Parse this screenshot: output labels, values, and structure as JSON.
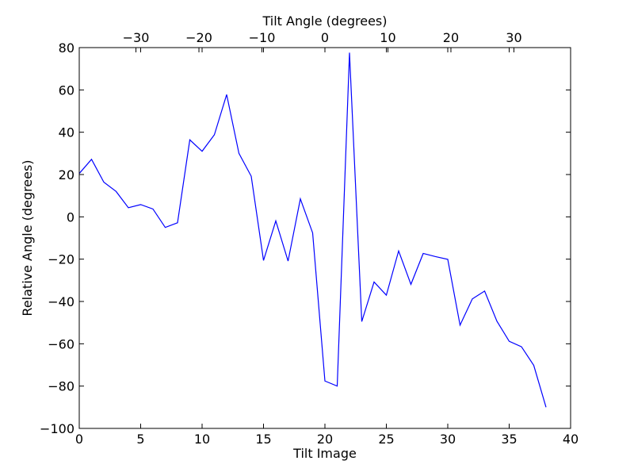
{
  "chart_data": {
    "type": "line",
    "title": "",
    "xlabel": "Tilt Image",
    "ylabel": "Relative Angle (degrees)",
    "x2label": "Tilt Angle (degrees)",
    "xlim": [
      0,
      40
    ],
    "ylim": [
      -100,
      80
    ],
    "x2lim": [
      -39,
      39
    ],
    "xticks": [
      0,
      5,
      10,
      15,
      20,
      25,
      30,
      35,
      40
    ],
    "xtick_labels": [
      "0",
      "5",
      "10",
      "15",
      "20",
      "25",
      "30",
      "35",
      "40"
    ],
    "yticks": [
      -100,
      -80,
      -60,
      -40,
      -20,
      0,
      20,
      40,
      60,
      80
    ],
    "ytick_labels": [
      "−100",
      "−80",
      "−60",
      "−40",
      "−20",
      "0",
      "20",
      "40",
      "60",
      "80"
    ],
    "x2ticks": [
      -30,
      -20,
      -10,
      0,
      10,
      20,
      30
    ],
    "x2tick_labels": [
      "−30",
      "−20",
      "−10",
      "0",
      "10",
      "20",
      "30"
    ],
    "grid": false,
    "line_color": "#0000ff",
    "series": [
      {
        "x": [
          0,
          1,
          2,
          3,
          4,
          5,
          6,
          7,
          8,
          9,
          10,
          11,
          12,
          13,
          14,
          15,
          16,
          17,
          18,
          19,
          20,
          21,
          22,
          23,
          24,
          25,
          26,
          27,
          28,
          29,
          30,
          31,
          32,
          33,
          34,
          35,
          36,
          37,
          38
        ],
        "values": [
          20.5,
          27.2,
          16.4,
          12.0,
          4.3,
          5.8,
          3.7,
          -5.0,
          -2.8,
          36.4,
          31.0,
          38.8,
          57.8,
          30.0,
          19.2,
          -20.6,
          -1.9,
          -20.9,
          8.5,
          -7.6,
          -77.6,
          -80.0,
          77.6,
          -49.5,
          -30.8,
          -37.0,
          -16.1,
          -31.9,
          -17.3,
          -18.8,
          -20.1,
          -51.2,
          -38.8,
          -35.1,
          -49.3,
          -58.8,
          -61.4,
          -70.2,
          -90.0
        ]
      }
    ]
  }
}
